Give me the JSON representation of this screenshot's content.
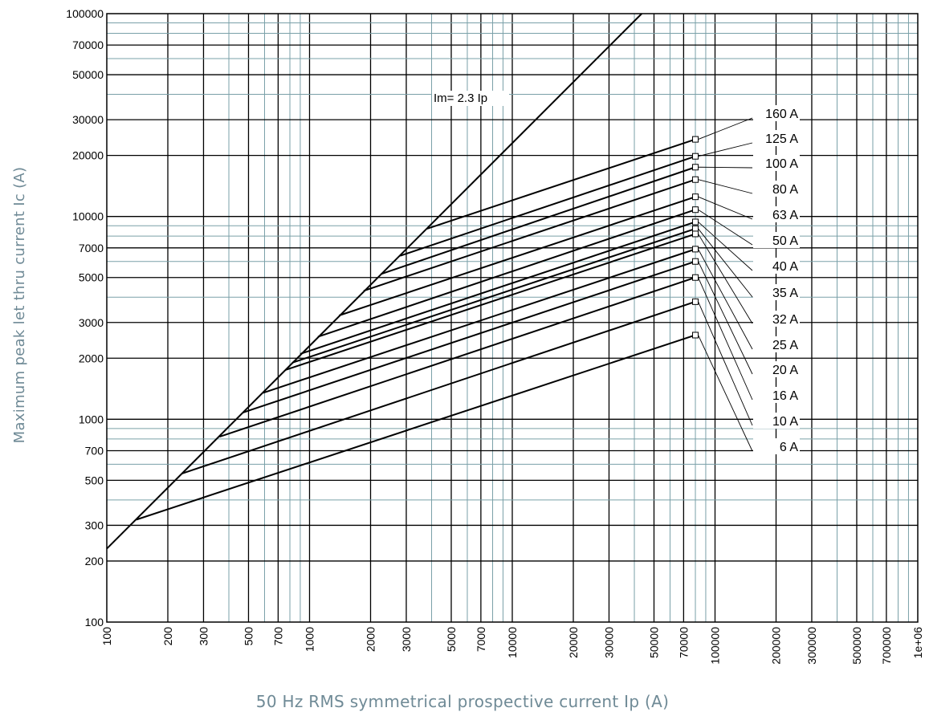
{
  "chart_data": {
    "type": "line",
    "xlabel": "50 Hz RMS symmetrical prospective current Ip (A)",
    "ylabel": "Maximum peak let thru current Ic (A)",
    "x_scale": "log",
    "y_scale": "log",
    "xlim": [
      100,
      1000000
    ],
    "ylim": [
      100,
      100000
    ],
    "grid": true,
    "x_tick_labels": [
      "100",
      "200",
      "300",
      "500",
      "700",
      "1000",
      "2000",
      "3000",
      "5000",
      "7000",
      "10000",
      "20000",
      "30000",
      "50000",
      "70000",
      "100000",
      "200000",
      "300000",
      "500000",
      "700000",
      "1e+06"
    ],
    "y_tick_labels": [
      "100",
      "200",
      "300",
      "500",
      "700",
      "1000",
      "2000",
      "3000",
      "5000",
      "7000",
      "10000",
      "20000",
      "30000",
      "50000",
      "70000",
      "100000"
    ],
    "reference_line": {
      "label": "Im= 2.3 Ip",
      "x": [
        100,
        43500
      ],
      "y": [
        230,
        100000
      ]
    },
    "series": [
      {
        "name": "160 A",
        "x": [
          3800,
          80000
        ],
        "y": [
          8700,
          24000
        ]
      },
      {
        "name": "125 A",
        "x": [
          2800,
          80000
        ],
        "y": [
          6400,
          19800
        ]
      },
      {
        "name": "100 A",
        "x": [
          2250,
          80000
        ],
        "y": [
          5200,
          17500
        ]
      },
      {
        "name": "80 A",
        "x": [
          1850,
          80000
        ],
        "y": [
          4300,
          15200
        ]
      },
      {
        "name": "63 A",
        "x": [
          1400,
          80000
        ],
        "y": [
          3250,
          12500
        ]
      },
      {
        "name": "50 A",
        "x": [
          1100,
          80000
        ],
        "y": [
          2550,
          10800
        ]
      },
      {
        "name": "40 A",
        "x": [
          900,
          80000
        ],
        "y": [
          2100,
          9400
        ]
      },
      {
        "name": "35 A",
        "x": [
          820,
          80000
        ],
        "y": [
          1900,
          8700
        ]
      },
      {
        "name": "32 A",
        "x": [
          760,
          80000
        ],
        "y": [
          1750,
          8200
        ]
      },
      {
        "name": "25 A",
        "x": [
          590,
          80000
        ],
        "y": [
          1350,
          6900
        ]
      },
      {
        "name": "20 A",
        "x": [
          470,
          80000
        ],
        "y": [
          1080,
          6000
        ]
      },
      {
        "name": "16 A",
        "x": [
          360,
          80000
        ],
        "y": [
          820,
          5000
        ]
      },
      {
        "name": "10 A",
        "x": [
          235,
          80000
        ],
        "y": [
          540,
          3800
        ]
      },
      {
        "name": "6 A",
        "x": [
          140,
          80000
        ],
        "y": [
          320,
          2600
        ]
      }
    ]
  }
}
